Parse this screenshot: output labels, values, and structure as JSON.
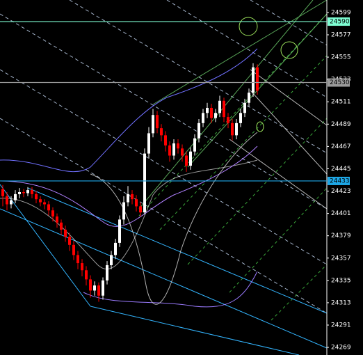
{
  "chart_data": {
    "type": "candlestick",
    "ylim": [
      24261.5,
      24611.3
    ],
    "yticks": [
      24599,
      24577,
      24555,
      24533,
      24511,
      24489,
      24467,
      24445,
      24423,
      24401,
      24379,
      24357,
      24335,
      24313,
      24291,
      24269
    ],
    "up_color": "#ffffff",
    "down_color": "#ff0000",
    "open": [
      24425,
      24418,
      24410,
      24414,
      24420,
      24422,
      24421,
      24424,
      24420,
      24415,
      24412,
      24410,
      24404,
      24398,
      24392,
      24385,
      24378,
      24370,
      24360,
      24352,
      24345,
      24336,
      24325,
      24330,
      24320,
      24335,
      24350,
      24360,
      24372,
      24395,
      24412,
      24420,
      24415,
      24408,
      24402,
      24460,
      24480,
      24498,
      24485,
      24478,
      24468,
      24458,
      24470,
      24465,
      24458,
      24448,
      24462,
      24475,
      24490,
      24500,
      24505,
      24495,
      24500,
      24512,
      24496,
      24490,
      24478,
      24490,
      24500,
      24510,
      24520,
      24545
    ],
    "high": [
      24429,
      24422,
      24418,
      24424,
      24426,
      24425,
      24427,
      24427,
      24423,
      24418,
      24415,
      24413,
      24407,
      24401,
      24395,
      24389,
      24382,
      24374,
      24364,
      24356,
      24349,
      24340,
      24334,
      24333,
      24338,
      24354,
      24364,
      24376,
      24399,
      24418,
      24428,
      24424,
      24419,
      24412,
      24465,
      24486,
      24504,
      24502,
      24489,
      24482,
      24472,
      24474,
      24474,
      24469,
      24462,
      24466,
      24479,
      24494,
      24504,
      24510,
      24509,
      24504,
      24517,
      24515,
      24500,
      24494,
      24494,
      24504,
      24514,
      24524,
      24549,
      24548
    ],
    "low": [
      24408,
      24404,
      24406,
      24411,
      24416,
      24417,
      24418,
      24416,
      24411,
      24408,
      24405,
      24399,
      24393,
      24387,
      24380,
      24373,
      24364,
      24355,
      24346,
      24339,
      24330,
      24318,
      24320,
      24314,
      24316,
      24331,
      24346,
      24356,
      24368,
      24390,
      24408,
      24410,
      24403,
      24398,
      24400,
      24455,
      24476,
      24480,
      24472,
      24462,
      24452,
      24454,
      24460,
      24452,
      24442,
      24444,
      24458,
      24471,
      24486,
      24495,
      24490,
      24491,
      24496,
      24491,
      24485,
      24473,
      24474,
      24486,
      24496,
      24506,
      24516,
      24518
    ],
    "close": [
      24418,
      24410,
      24414,
      24420,
      24422,
      24421,
      24424,
      24420,
      24415,
      24412,
      24410,
      24404,
      24398,
      24392,
      24385,
      24378,
      24370,
      24360,
      24352,
      24345,
      24336,
      24325,
      24330,
      24320,
      24335,
      24350,
      24360,
      24372,
      24395,
      24412,
      24420,
      24415,
      24408,
      24402,
      24460,
      24480,
      24498,
      24485,
      24478,
      24468,
      24458,
      24470,
      24465,
      24458,
      24448,
      24462,
      24475,
      24490,
      24500,
      24505,
      24495,
      24500,
      24512,
      24496,
      24490,
      24478,
      24490,
      24500,
      24510,
      24520,
      24545,
      24522
    ],
    "levels": [
      {
        "value": 24590,
        "color": "#7fffd4"
      },
      {
        "value": 24530,
        "color": "#9a9a9a"
      },
      {
        "value": 24433,
        "color": "#1ea7e6"
      }
    ]
  }
}
